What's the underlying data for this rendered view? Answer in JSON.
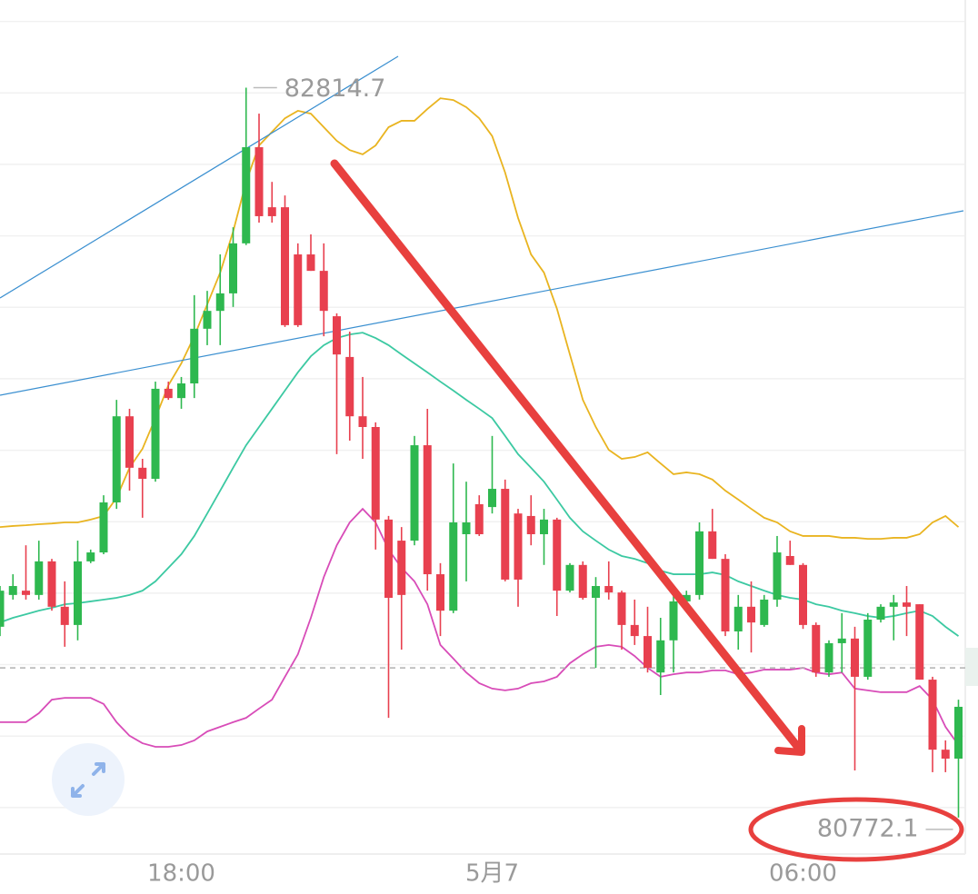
{
  "chart_data": {
    "type": "candlestick",
    "categories": [
      null,
      null,
      null,
      null,
      null,
      null,
      null,
      null,
      null,
      null,
      null,
      null,
      null,
      null,
      "18:00",
      null,
      null,
      null,
      null,
      null,
      null,
      null,
      null,
      null,
      null,
      null,
      null,
      null,
      null,
      null,
      null,
      null,
      null,
      null,
      null,
      null,
      null,
      null,
      "5月7",
      null,
      null,
      null,
      null,
      null,
      null,
      null,
      null,
      null,
      null,
      null,
      null,
      null,
      null,
      null,
      null,
      null,
      null,
      null,
      null,
      null,
      null,
      null,
      "06:00",
      null,
      null,
      null,
      null,
      null,
      null,
      null,
      null,
      null,
      null,
      null,
      null
    ],
    "open": [
      81306,
      81395,
      81407,
      81395,
      81489,
      81362,
      81311,
      81489,
      81514,
      81654,
      81895,
      81751,
      81720,
      81972,
      81946,
      81987,
      82140,
      82190,
      82239,
      82379,
      82648,
      82480,
      82480,
      82348,
      82348,
      82302,
      82175,
      82061,
      81895,
      81865,
      81606,
      81547,
      81547,
      81814,
      81453,
      81351,
      81565,
      81649,
      81641,
      81692,
      81623,
      81616,
      81565,
      81606,
      81407,
      81479,
      81387,
      81420,
      81402,
      81311,
      81280,
      81178,
      81268,
      81377,
      81395,
      81573,
      81496,
      81293,
      81362,
      81311,
      81382,
      81504,
      81479,
      81311,
      81178,
      81260,
      81273,
      81166,
      81326,
      81362,
      81374,
      81369,
      81158,
      80962,
      80937
    ],
    "high": [
      81420,
      81453,
      81534,
      81547,
      81496,
      81433,
      81547,
      81522,
      81674,
      81941,
      81916,
      81776,
      81992,
      81992,
      82005,
      82234,
      82246,
      82348,
      82424,
      82814.7,
      82742,
      82551,
      82513,
      82379,
      82404,
      82379,
      82183,
      82132,
      82005,
      81878,
      81616,
      81585,
      81840,
      81916,
      81484,
      81763,
      81712,
      81674,
      81840,
      81718,
      81636,
      81674,
      81636,
      81611,
      81484,
      81489,
      81445,
      81489,
      81407,
      81382,
      81362,
      81331,
      81407,
      81407,
      81598,
      81636,
      81509,
      81395,
      81433,
      81395,
      81560,
      81547,
      81484,
      81318,
      81268,
      81344,
      81306,
      81344,
      81369,
      81395,
      81420,
      81369,
      81166,
      80988,
      81102
    ],
    "low": [
      81280,
      81382,
      81382,
      81382,
      81351,
      81250,
      81268,
      81484,
      81509,
      81636,
      81687,
      81611,
      81712,
      81941,
      81916,
      81946,
      82094,
      82094,
      82201,
      82374,
      82437,
      82437,
      82145,
      82145,
      82302,
      82119,
      81789,
      81827,
      81776,
      81522,
      81051,
      81242,
      81534,
      81407,
      81280,
      81344,
      81433,
      81560,
      81623,
      81433,
      81362,
      81534,
      81479,
      81336,
      81402,
      81382,
      81191,
      81382,
      81242,
      81255,
      81178,
      81115,
      81178,
      81369,
      81382,
      81496,
      81280,
      81242,
      81234,
      81306,
      81362,
      81479,
      81300,
      81166,
      81166,
      81178,
      80904,
      81158,
      81318,
      81268,
      81280,
      81158,
      80899,
      80899,
      80772.1
    ],
    "close": [
      81407,
      81420,
      81395,
      81489,
      81362,
      81311,
      81489,
      81514,
      81654,
      81895,
      81751,
      81720,
      81972,
      81946,
      81987,
      82140,
      82190,
      82239,
      82379,
      82648,
      82455,
      82455,
      82150,
      82150,
      82302,
      82190,
      82068,
      81895,
      81865,
      81606,
      81387,
      81395,
      81814,
      81453,
      81351,
      81598,
      81598,
      81565,
      81692,
      81438,
      81438,
      81565,
      81606,
      81407,
      81479,
      81387,
      81420,
      81402,
      81311,
      81280,
      81191,
      81268,
      81377,
      81395,
      81573,
      81496,
      81293,
      81362,
      81318,
      81382,
      81514,
      81479,
      81311,
      81178,
      81260,
      81273,
      81166,
      81326,
      81362,
      81374,
      81362,
      81158,
      80962,
      80937,
      81082
    ],
    "up_color": "#2eb84f",
    "down_color": "#e8404f",
    "bands": [
      {
        "color": "#e9b420",
        "values": [
          81585,
          81588,
          81590,
          81593,
          81595,
          81598,
          81598,
          81606,
          81616,
          81667,
          81751,
          81804,
          81890,
          81982,
          82043,
          82119,
          82208,
          82297,
          82412,
          82551,
          82653,
          82691,
          82729,
          82750,
          82742,
          82704,
          82666,
          82640,
          82628,
          82653,
          82704,
          82722,
          82722,
          82755,
          82785,
          82780,
          82760,
          82729,
          82679,
          82577,
          82450,
          82348,
          82297,
          82196,
          82068,
          81941,
          81865,
          81801,
          81776,
          81781,
          81794,
          81763,
          81733,
          81738,
          81733,
          81718,
          81687,
          81662,
          81636,
          81611,
          81598,
          81573,
          81560,
          81560,
          81560,
          81555,
          81555,
          81552,
          81552,
          81555,
          81555,
          81565,
          81598,
          81616,
          81585
        ]
      },
      {
        "color": "#3cc9a2",
        "values": [
          81318,
          81331,
          81341,
          81351,
          81359,
          81369,
          81372,
          81377,
          81382,
          81387,
          81395,
          81407,
          81433,
          81471,
          81509,
          81560,
          81623,
          81687,
          81751,
          81814,
          81865,
          81916,
          81967,
          82018,
          82063,
          82094,
          82114,
          82124,
          82129,
          82114,
          82094,
          82068,
          82043,
          82018,
          81992,
          81967,
          81941,
          81916,
          81890,
          81840,
          81789,
          81751,
          81712,
          81662,
          81611,
          81573,
          81547,
          81522,
          81504,
          81496,
          81484,
          81463,
          81453,
          81453,
          81453,
          81458,
          81451,
          81433,
          81420,
          81407,
          81395,
          81387,
          81382,
          81369,
          81362,
          81351,
          81344,
          81336,
          81331,
          81336,
          81344,
          81351,
          81336,
          81306,
          81280
        ]
      },
      {
        "color": "#d84cb8",
        "values": [
          81039,
          81039,
          81039,
          81064,
          81102,
          81107,
          81107,
          81107,
          81090,
          81039,
          81001,
          80980,
          80970,
          80970,
          80975,
          80988,
          81013,
          81026,
          81039,
          81051,
          81077,
          81102,
          81166,
          81229,
          81331,
          81445,
          81534,
          81598,
          81636,
          81598,
          81522,
          81471,
          81433,
          81369,
          81255,
          81217,
          81178,
          81148,
          81133,
          81128,
          81133,
          81148,
          81153,
          81166,
          81204,
          81229,
          81250,
          81255,
          81250,
          81224,
          81191,
          81166,
          81173,
          81178,
          81178,
          81184,
          81184,
          81173,
          81178,
          81186,
          81186,
          81186,
          81191,
          81178,
          81173,
          81178,
          81133,
          81128,
          81123,
          81123,
          81123,
          81140,
          81102,
          81026,
          80975
        ]
      }
    ],
    "price_line": 81191,
    "ylim": [
      80670,
      83060
    ],
    "yticks": [
      80800,
      81000,
      81200,
      81400,
      81600,
      81800,
      82000,
      82200,
      82400,
      82600,
      82800,
      83000
    ],
    "grid": true
  }
}
